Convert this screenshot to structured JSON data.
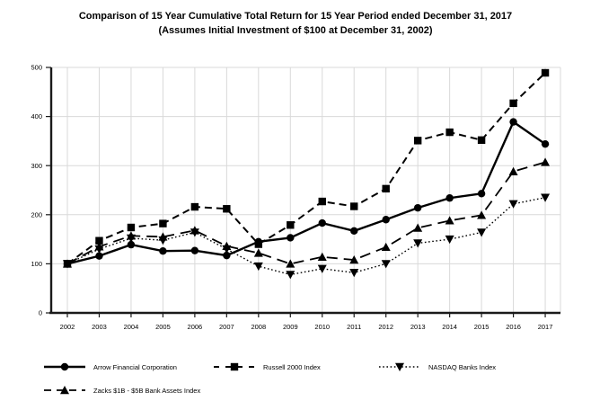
{
  "title": {
    "line1": "Comparison of 15 Year Cumulative Total Return for 15 Year Period ended December 31, 2017",
    "line2": "(Assumes Initial Investment of $100 at December 31, 2002)"
  },
  "chart_data": {
    "type": "line",
    "x": [
      2002,
      2003,
      2004,
      2005,
      2006,
      2007,
      2008,
      2009,
      2010,
      2011,
      2012,
      2013,
      2014,
      2015,
      2016,
      2017
    ],
    "series": [
      {
        "name": "Arrow Financial Corporation",
        "style": "solid",
        "marker": "circle",
        "values": [
          100,
          116,
          139,
          126,
          127,
          117,
          145,
          153,
          183,
          167,
          190,
          214,
          234,
          243,
          389,
          344
        ]
      },
      {
        "name": "Russell 2000 Index",
        "style": "dashed",
        "marker": "square",
        "values": [
          100,
          147,
          174,
          182,
          216,
          212,
          140,
          179,
          227,
          217,
          253,
          351,
          368,
          352,
          427,
          489
        ]
      },
      {
        "name": "Zacks $1B - $5B Bank Assets Index",
        "style": "longdash",
        "marker": "triangle-up",
        "values": [
          100,
          135,
          157,
          155,
          168,
          136,
          122,
          100,
          114,
          108,
          134,
          173,
          188,
          199,
          288,
          307
        ]
      },
      {
        "name": "NASDAQ Banks Index",
        "style": "dotted",
        "marker": "triangle-down",
        "values": [
          100,
          130,
          152,
          148,
          164,
          130,
          95,
          78,
          90,
          82,
          100,
          142,
          150,
          164,
          222,
          235
        ]
      }
    ],
    "ylim": [
      0,
      500
    ],
    "yticks": [
      0,
      100,
      200,
      300,
      400,
      500
    ],
    "grid": true,
    "legend_position": "bottom",
    "legend_order": [
      0,
      1,
      3,
      2
    ]
  },
  "colors": {
    "line": "#000000",
    "axis": "#1a1a1a",
    "grid": "#d9d9d9",
    "background": "#ffffff"
  }
}
